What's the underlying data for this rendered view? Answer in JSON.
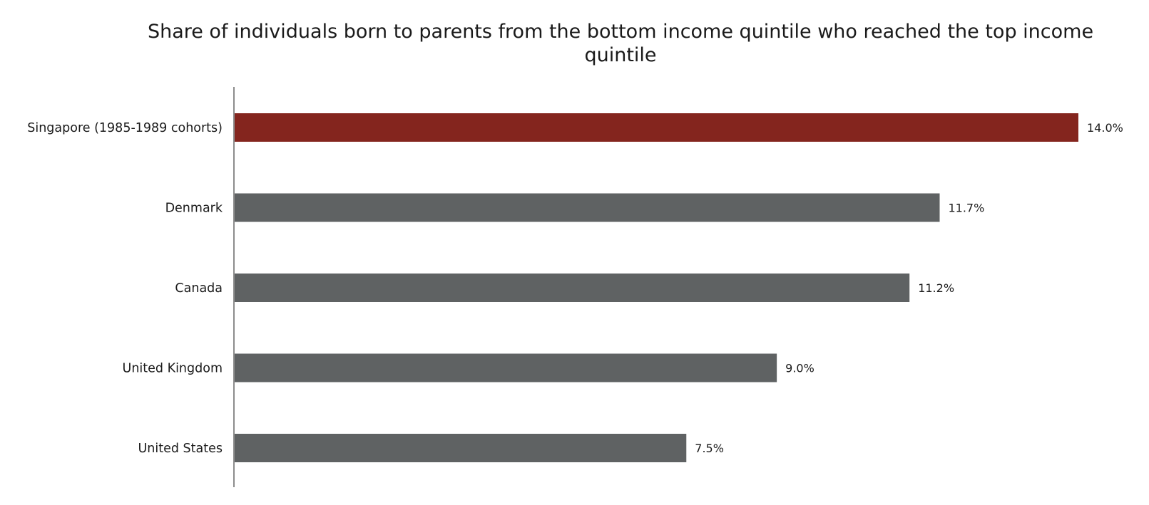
{
  "chart_data": {
    "type": "bar",
    "orientation": "horizontal",
    "title": "Share of individuals born to parents from the bottom income quintile who reached the top income quintile",
    "xlabel": "",
    "ylabel": "",
    "categories": [
      "Singapore (1985-1989 cohorts)",
      "Denmark",
      "Canada",
      "United Kingdom",
      "United States"
    ],
    "values": [
      14.0,
      11.7,
      11.2,
      9.0,
      7.5
    ],
    "value_labels": [
      "14.0%",
      "11.7%",
      "11.2%",
      "9.0%",
      "7.5%"
    ],
    "unit": "%",
    "xlim": [
      0,
      14.0
    ],
    "grid": false,
    "legend": "none",
    "colors": {
      "highlight": "#84251e",
      "default": "#5f6263",
      "axis": "#8c8c8c"
    },
    "highlight_index": 0
  }
}
